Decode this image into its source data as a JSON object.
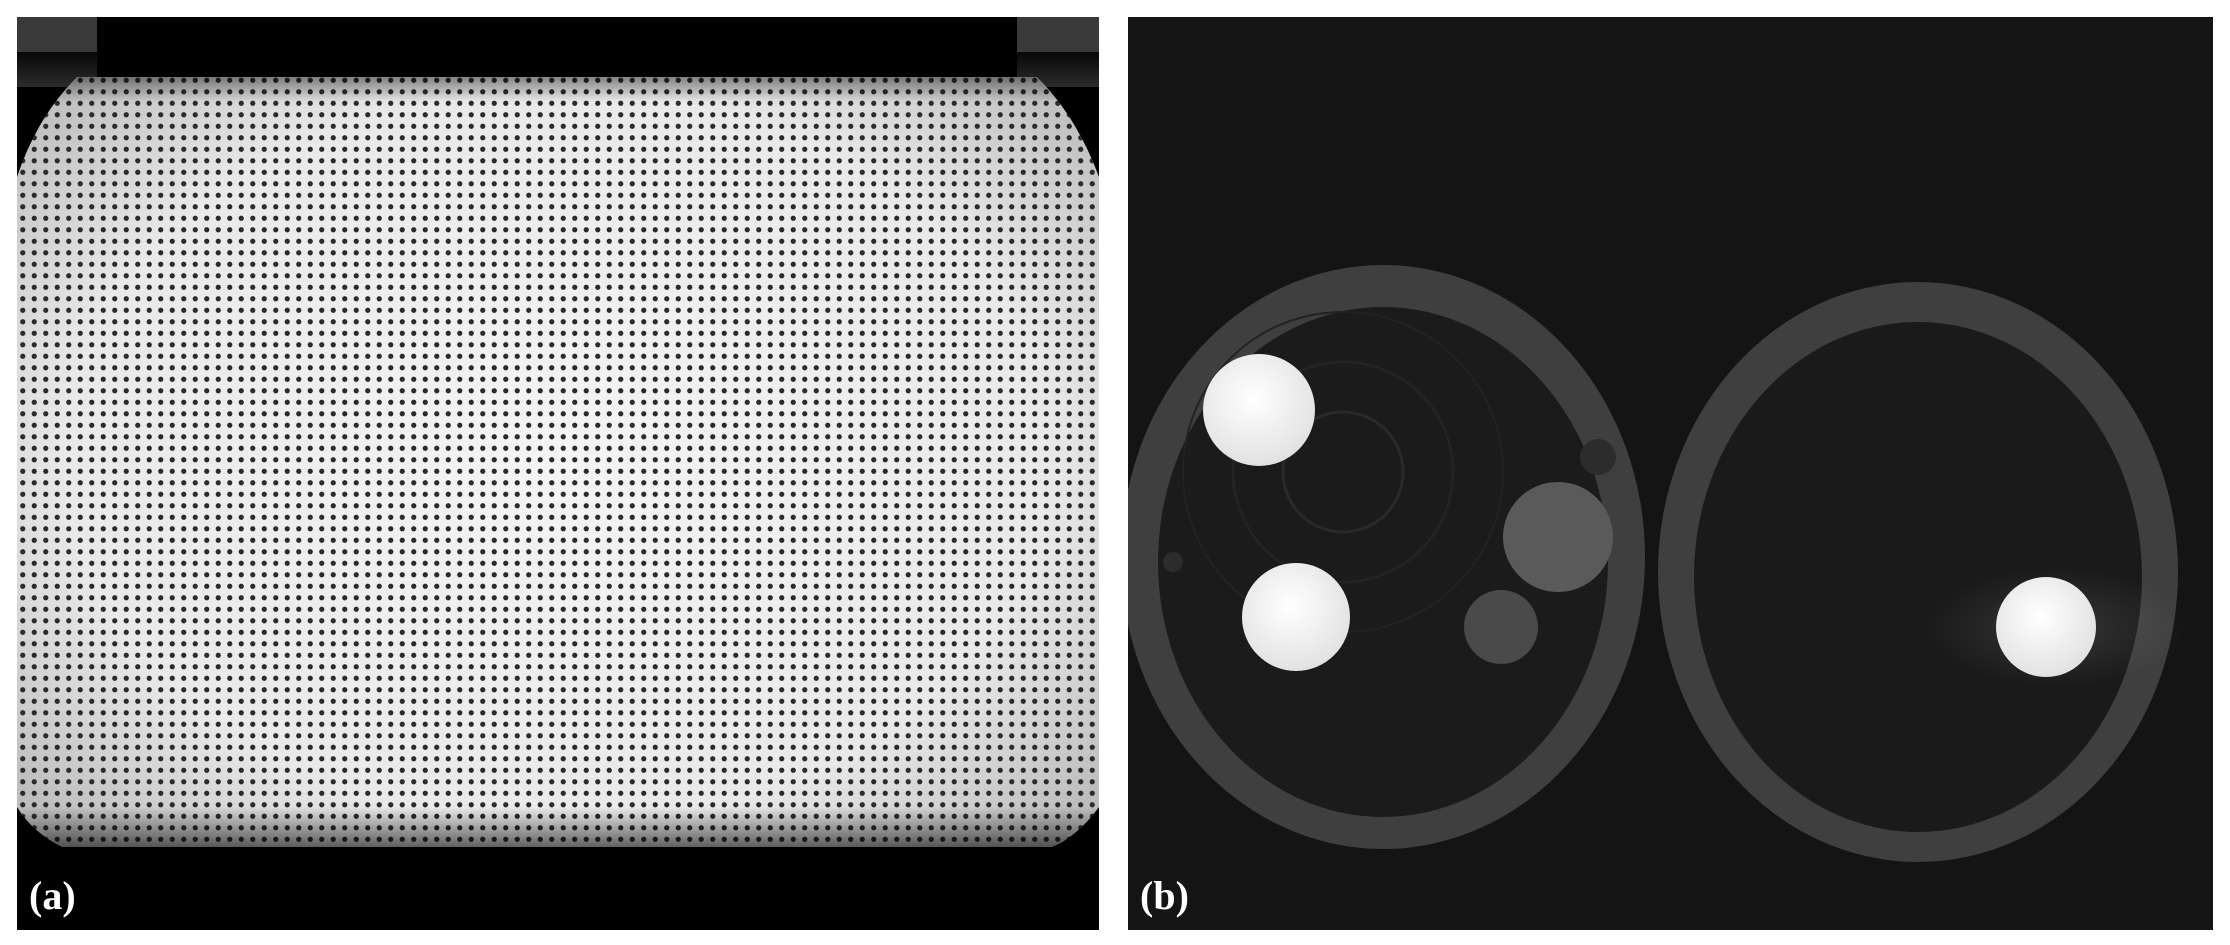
{
  "panels": [
    {
      "label": "(a)",
      "content": "grid-phantom-projection"
    },
    {
      "label": "(b)",
      "content": "ct-slice"
    }
  ]
}
